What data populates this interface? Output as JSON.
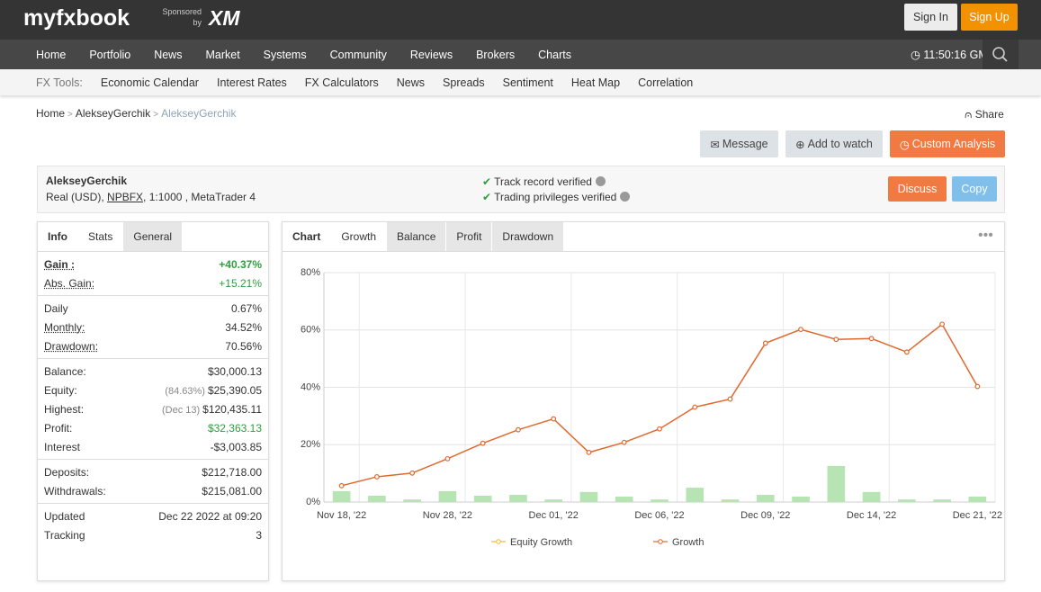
{
  "header": {
    "logo": "myfxbook",
    "sponsored": "Sponsored by",
    "sponsor": "XM",
    "sign_in": "Sign In",
    "sign_up": "Sign Up"
  },
  "nav": {
    "items": [
      "Home",
      "Portfolio",
      "News",
      "Market",
      "Systems",
      "Community",
      "Reviews",
      "Brokers",
      "Charts"
    ],
    "time": "11:50:16 GM"
  },
  "tools": {
    "label": "FX Tools:",
    "items": [
      "Economic Calendar",
      "Interest Rates",
      "FX Calculators",
      "News",
      "Spreads",
      "Sentiment",
      "Heat Map",
      "Correlation"
    ]
  },
  "breadcrumb": {
    "items": [
      "Home",
      "AlekseyGerchik",
      "AlekseyGerchik"
    ],
    "separator": ">",
    "share": "Share"
  },
  "actions": [
    "Message",
    "Add to watch",
    "Custom Analysis"
  ],
  "account": {
    "name": "AlekseyGerchik",
    "details_prefix": "Real (USD),",
    "broker": "NPBFX",
    "details_suffix": ", 1:1000 , MetaTrader 4",
    "verified": [
      "Track record verified",
      "Trading privileges verified"
    ],
    "buttons": [
      "Discuss",
      "Copy"
    ]
  },
  "stats": {
    "tabs": [
      "Info",
      "Stats",
      "General"
    ],
    "groups": [
      [
        {
          "label": "Gain :",
          "value": "+40.37%",
          "color": "#2e9e3e"
        },
        {
          "label": "Abs. Gain:",
          "value": "+15.21%",
          "color": "#2e9e3e"
        }
      ],
      [
        {
          "label": "Daily",
          "value": "0.67%"
        },
        {
          "label": "Monthly:",
          "value": "34.52%"
        },
        {
          "label": "Drawdown:",
          "value": "70.56%"
        }
      ],
      [
        {
          "label": "Balance:",
          "value": "$30,000.13"
        },
        {
          "label": "Equity:",
          "note": "(84.63%)",
          "value": "$25,390.05"
        },
        {
          "label": "Highest:",
          "note": "(Dec 13)",
          "value": "$120,435.11"
        },
        {
          "label": "Profit:",
          "value": "$32,363.13",
          "color": "#2e9e3e"
        },
        {
          "label": "Interest",
          "value": "-$3,003.85"
        }
      ],
      [
        {
          "label": "Deposits:",
          "value": "$212,718.00"
        },
        {
          "label": "Withdrawals:",
          "value": "$215,081.00"
        }
      ],
      [
        {
          "label": "Updated",
          "value": "Dec 22 2022 at 09:20"
        },
        {
          "label": "Tracking",
          "value": "3"
        }
      ]
    ]
  },
  "chart_panel": {
    "tabs": [
      "Chart",
      "Growth",
      "Balance",
      "Profit",
      "Drawdown"
    ]
  },
  "chart_data": {
    "type": "line",
    "categories": [
      "Nov 18, '22",
      null,
      null,
      "Nov 28, '22",
      null,
      null,
      "Dec 01, '22",
      null,
      null,
      "Dec 06, '22",
      null,
      null,
      "Dec 09, '22",
      null,
      null,
      "Dec 14, '22",
      null,
      null,
      "Dec 21, '22"
    ],
    "series": [
      {
        "type": "bar",
        "color": "#b6e5b3",
        "values": [
          3.8,
          2.2,
          0.9,
          3.8,
          2.2,
          2.5,
          0.9,
          3.5,
          1.9,
          0.9,
          5.0,
          0.9,
          2.5,
          1.9,
          12.6,
          3.5,
          0.9,
          0.9,
          1.9
        ]
      },
      {
        "name": "Equity Growth",
        "color": "#f5b82e",
        "values": [
          null,
          null,
          null,
          null,
          null,
          null,
          null,
          null,
          null,
          null,
          null,
          null,
          null,
          null,
          null,
          null,
          null,
          null,
          null
        ]
      },
      {
        "name": "Growth",
        "color": "#e0692e",
        "values": [
          5.7,
          8.8,
          10.1,
          15.1,
          20.5,
          25.2,
          29.0,
          17.3,
          20.8,
          25.5,
          33.1,
          35.9,
          55.4,
          60.2,
          56.7,
          57.0,
          52.3,
          62.0,
          40.3
        ]
      }
    ],
    "ylim": [
      0,
      80
    ],
    "yticks": [
      {
        "value": 0,
        "label": "0%"
      },
      {
        "value": 20,
        "label": "20%"
      },
      {
        "value": 40,
        "label": "40%"
      },
      {
        "value": 60,
        "label": "60%"
      },
      {
        "value": 80,
        "label": "80%"
      }
    ],
    "grid": true
  }
}
